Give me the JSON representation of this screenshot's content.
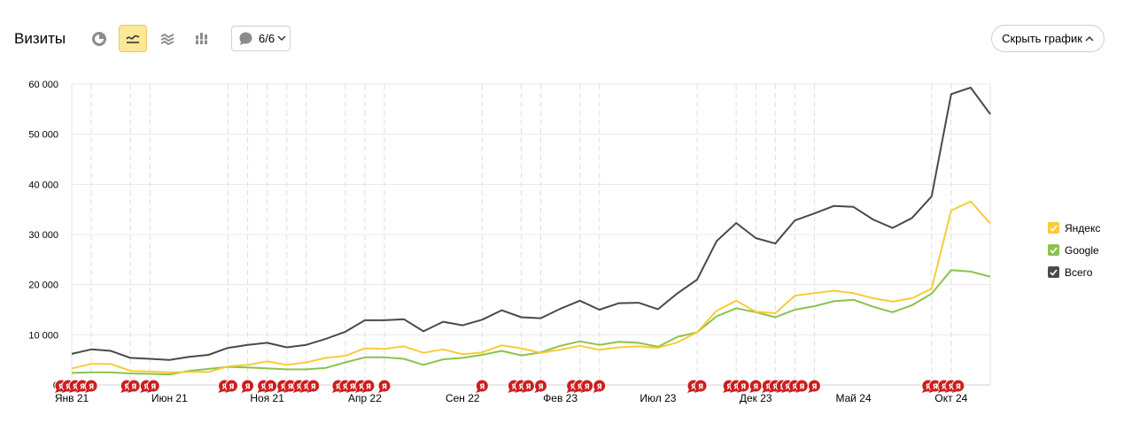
{
  "header": {
    "title": "Визиты",
    "notes_count": "6/6",
    "hide_chart_label": "Скрыть график"
  },
  "legend": [
    {
      "label": "Яндекс",
      "color": "#f8cb3a"
    },
    {
      "label": "Google",
      "color": "#8bc34a"
    },
    {
      "label": "Всего",
      "color": "#4a4a4a"
    }
  ],
  "chart_data": {
    "type": "line",
    "title": "Визиты",
    "xlabel": "",
    "ylabel": "",
    "ylim": [
      0,
      60000
    ],
    "yticks": [
      0,
      10000,
      20000,
      30000,
      40000,
      50000,
      60000
    ],
    "ytick_labels": [
      "0",
      "10 000",
      "20 000",
      "30 000",
      "40 000",
      "50 000",
      "60 000"
    ],
    "x_start": "2021-01",
    "x_end": "2024-12",
    "x_tick_labels": [
      {
        "label": "Янв 21",
        "month": "2021-01"
      },
      {
        "label": "Июн 21",
        "month": "2021-06"
      },
      {
        "label": "Ноя 21",
        "month": "2021-11"
      },
      {
        "label": "Апр 22",
        "month": "2022-04"
      },
      {
        "label": "Сен 22",
        "month": "2022-09"
      },
      {
        "label": "Фев 23",
        "month": "2023-02"
      },
      {
        "label": "Июл 23",
        "month": "2023-07"
      },
      {
        "label": "Дек 23",
        "month": "2023-12"
      },
      {
        "label": "Май 24",
        "month": "2024-05"
      },
      {
        "label": "Окт 24",
        "month": "2024-10"
      }
    ],
    "grid": true,
    "legend_position": "right",
    "series": [
      {
        "name": "Яндекс",
        "color": "#f8cb3a",
        "values": [
          3300,
          4200,
          4200,
          2800,
          2700,
          2500,
          2600,
          2600,
          3700,
          4000,
          4700,
          4000,
          4500,
          5400,
          5800,
          7300,
          7200,
          7700,
          6400,
          7100,
          6100,
          6500,
          7900,
          7300,
          6400,
          7000,
          7800,
          7000,
          7500,
          7700,
          7400,
          8500,
          10500,
          14800,
          16800,
          14600,
          14300,
          17800,
          18300,
          18800,
          18300,
          17300,
          16600,
          17300,
          19200,
          34800,
          36600,
          32200
        ]
      },
      {
        "name": "Google",
        "color": "#8bc34a",
        "values": [
          2400,
          2500,
          2500,
          2300,
          2200,
          2100,
          2800,
          3200,
          3600,
          3500,
          3300,
          3100,
          3100,
          3400,
          4500,
          5500,
          5500,
          5200,
          4000,
          5100,
          5400,
          6000,
          6800,
          5900,
          6500,
          7800,
          8700,
          8000,
          8600,
          8400,
          7600,
          9600,
          10500,
          13700,
          15300,
          14500,
          13500,
          15000,
          15700,
          16700,
          17000,
          15600,
          14500,
          15900,
          18200,
          22900,
          22600,
          21600
        ]
      },
      {
        "name": "Всего",
        "color": "#4a4a4a",
        "values": [
          6200,
          7100,
          6800,
          5400,
          5200,
          5000,
          5600,
          6000,
          7400,
          8000,
          8400,
          7500,
          8000,
          9200,
          10600,
          12900,
          12900,
          13100,
          10700,
          12600,
          11900,
          13000,
          14900,
          13500,
          13300,
          15200,
          16800,
          15000,
          16300,
          16400,
          15100,
          18300,
          21000,
          28700,
          32300,
          29300,
          28200,
          32800,
          34200,
          35700,
          35500,
          33000,
          31300,
          33300,
          37600,
          58000,
          59300,
          54000
        ]
      }
    ],
    "annotation_marker": "Я",
    "annotation_groups": [
      {
        "month": "2021-01",
        "count": 4
      },
      {
        "month": "2021-02",
        "count": 1
      },
      {
        "month": "2021-04",
        "count": 2
      },
      {
        "month": "2021-05",
        "count": 2
      },
      {
        "month": "2021-09",
        "count": 2
      },
      {
        "month": "2021-10",
        "count": 1
      },
      {
        "month": "2021-11",
        "count": 2
      },
      {
        "month": "2021-12",
        "count": 2
      },
      {
        "month": "2022-01",
        "count": 3
      },
      {
        "month": "2022-03",
        "count": 3
      },
      {
        "month": "2022-04",
        "count": 2
      },
      {
        "month": "2022-05",
        "count": 1
      },
      {
        "month": "2022-10",
        "count": 1
      },
      {
        "month": "2022-12",
        "count": 3
      },
      {
        "month": "2023-01",
        "count": 1
      },
      {
        "month": "2023-03",
        "count": 3
      },
      {
        "month": "2023-04",
        "count": 1
      },
      {
        "month": "2023-09",
        "count": 2
      },
      {
        "month": "2023-11",
        "count": 3
      },
      {
        "month": "2023-12",
        "count": 1
      },
      {
        "month": "2024-01",
        "count": 3
      },
      {
        "month": "2024-02",
        "count": 3
      },
      {
        "month": "2024-03",
        "count": 1
      },
      {
        "month": "2024-09",
        "count": 2
      },
      {
        "month": "2024-10",
        "count": 3
      }
    ]
  }
}
